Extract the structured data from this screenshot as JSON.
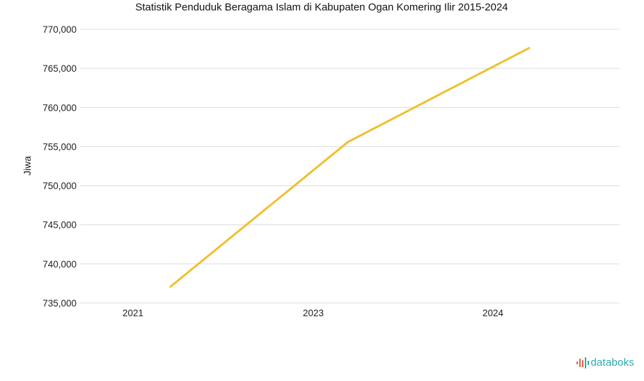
{
  "chart_data": {
    "type": "line",
    "title": "Statistik Penduduk Beragama Islam di Kabupaten Ogan Komering Ilir 2015-2024",
    "xlabel": "",
    "ylabel": "Jiwa",
    "categories": [
      "2021",
      "2023",
      "2024"
    ],
    "series": [
      {
        "values": [
          737100,
          755600,
          767600
        ],
        "color": "#f0c02d"
      }
    ],
    "ylim": [
      735000,
      770000
    ],
    "yticks": [
      735000,
      740000,
      745000,
      750000,
      755000,
      760000,
      765000,
      770000
    ],
    "ytick_labels": [
      "735,000",
      "740,000",
      "745,000",
      "750,000",
      "755,000",
      "760,000",
      "765,000",
      "770,000"
    ],
    "grid": true,
    "legend": "none"
  },
  "brand": {
    "name": "databoks",
    "icon": "databoks-logo-icon",
    "color": "#2aa7a7",
    "icon_colors": [
      "#e85d3c",
      "#2aa7a7"
    ]
  }
}
